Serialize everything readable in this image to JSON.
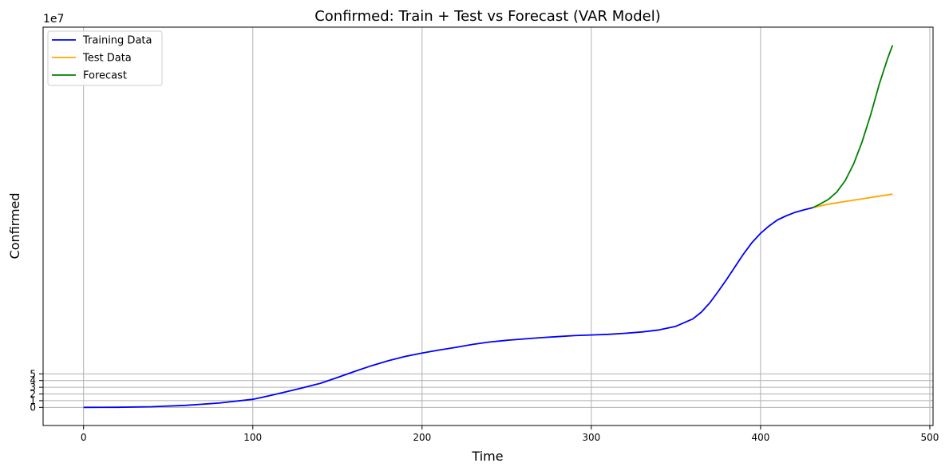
{
  "chart_data": {
    "type": "line",
    "title": "Confirmed: Train + Test vs Forecast (VAR Model)",
    "xlabel": "Time",
    "ylabel": "Confirmed",
    "y_offset_text": "1e7",
    "xlim": [
      -23.9,
      501.9
    ],
    "ylim": [
      -2.7,
      56.7
    ],
    "x_ticks": [
      0,
      100,
      200,
      300,
      400,
      500
    ],
    "y_ticks": [
      0,
      1,
      2,
      3,
      4,
      5
    ],
    "grid": true,
    "legend_position": "top-left",
    "series": [
      {
        "name": "Training Data",
        "color": "#0000ff",
        "points": [
          [
            0,
            0.0
          ],
          [
            20,
            0.02
          ],
          [
            40,
            0.1
          ],
          [
            60,
            0.3
          ],
          [
            80,
            0.65
          ],
          [
            100,
            1.2
          ],
          [
            110,
            1.75
          ],
          [
            120,
            2.35
          ],
          [
            130,
            2.95
          ],
          [
            140,
            3.6
          ],
          [
            150,
            4.45
          ],
          [
            160,
            5.35
          ],
          [
            170,
            6.2
          ],
          [
            180,
            6.95
          ],
          [
            190,
            7.6
          ],
          [
            200,
            8.1
          ],
          [
            210,
            8.55
          ],
          [
            220,
            8.95
          ],
          [
            230,
            9.4
          ],
          [
            240,
            9.75
          ],
          [
            250,
            10.0
          ],
          [
            260,
            10.2
          ],
          [
            270,
            10.4
          ],
          [
            280,
            10.55
          ],
          [
            290,
            10.7
          ],
          [
            300,
            10.8
          ],
          [
            310,
            10.9
          ],
          [
            320,
            11.05
          ],
          [
            330,
            11.25
          ],
          [
            340,
            11.55
          ],
          [
            350,
            12.1
          ],
          [
            360,
            13.2
          ],
          [
            365,
            14.2
          ],
          [
            370,
            15.6
          ],
          [
            375,
            17.3
          ],
          [
            380,
            19.1
          ],
          [
            385,
            21.0
          ],
          [
            390,
            22.9
          ],
          [
            395,
            24.6
          ],
          [
            400,
            25.95
          ],
          [
            405,
            27.05
          ],
          [
            410,
            27.95
          ],
          [
            415,
            28.55
          ],
          [
            420,
            29.05
          ],
          [
            425,
            29.4
          ],
          [
            431,
            29.8
          ]
        ]
      },
      {
        "name": "Test Data",
        "color": "#ffa500",
        "points": [
          [
            431,
            29.8
          ],
          [
            440,
            30.3
          ],
          [
            450,
            30.7
          ],
          [
            460,
            31.1
          ],
          [
            470,
            31.5
          ],
          [
            478,
            31.8
          ]
        ]
      },
      {
        "name": "Forecast",
        "color": "#008000",
        "points": [
          [
            431,
            29.8
          ],
          [
            435,
            30.3
          ],
          [
            440,
            31.0
          ],
          [
            445,
            32.1
          ],
          [
            450,
            33.8
          ],
          [
            455,
            36.3
          ],
          [
            460,
            39.6
          ],
          [
            465,
            43.6
          ],
          [
            470,
            48.1
          ],
          [
            475,
            52.0
          ],
          [
            478,
            54.0
          ]
        ]
      }
    ]
  }
}
